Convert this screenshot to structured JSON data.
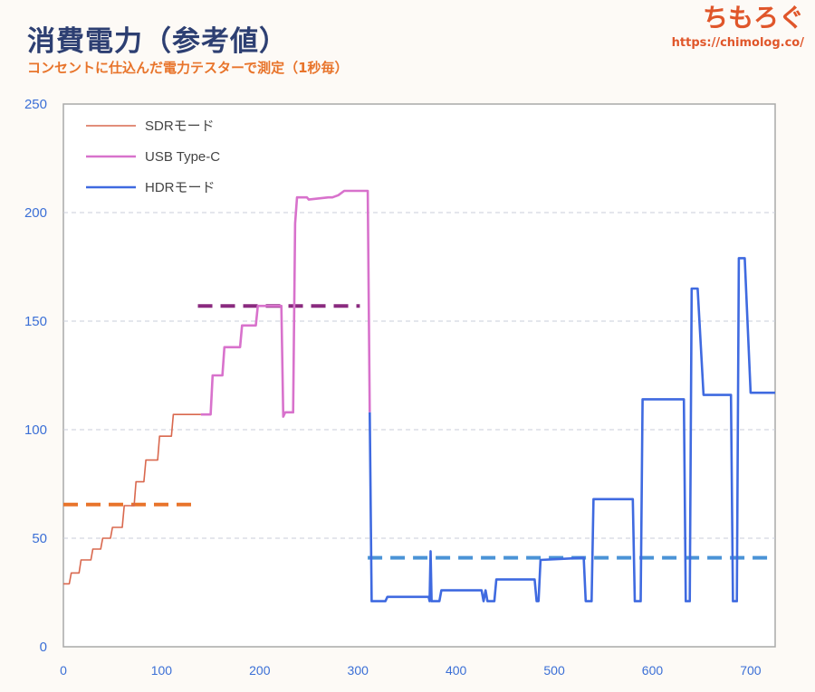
{
  "header": {
    "title": "消費電力（参考値）",
    "subtitle": "コンセントに仕込んだ電力テスターで測定（1秒毎）"
  },
  "brand": {
    "logo": "ちもろぐ",
    "url": "https://chimolog.co/"
  },
  "colors": {
    "sdr": "#d9684e",
    "usb": "#d872cc",
    "hdr": "#3f6ae0",
    "sdr_avg": "#e8742b",
    "usb_avg": "#8a2a7f",
    "hdr_avg": "#4a93d6",
    "tick": "#3b6fd6"
  },
  "chart_data": {
    "type": "line",
    "xlim": [
      0,
      725
    ],
    "ylim": [
      0,
      250
    ],
    "x_ticks": [
      0,
      100,
      200,
      300,
      400,
      500,
      600,
      700
    ],
    "y_ticks": [
      0,
      50,
      100,
      150,
      200,
      250
    ],
    "grid": "horizontal-dashed",
    "legend_position": "top-left",
    "series": [
      {
        "name": "SDRモード",
        "color_key": "sdr",
        "points": [
          [
            0,
            29
          ],
          [
            6,
            29
          ],
          [
            8,
            34
          ],
          [
            16,
            34
          ],
          [
            18,
            40
          ],
          [
            28,
            40
          ],
          [
            30,
            45
          ],
          [
            38,
            45
          ],
          [
            40,
            50
          ],
          [
            48,
            50
          ],
          [
            50,
            55
          ],
          [
            60,
            55
          ],
          [
            62,
            65
          ],
          [
            72,
            65
          ],
          [
            74,
            76
          ],
          [
            82,
            76
          ],
          [
            84,
            86
          ],
          [
            96,
            86
          ],
          [
            98,
            97
          ],
          [
            110,
            97
          ],
          [
            112,
            107
          ],
          [
            140,
            107
          ]
        ]
      },
      {
        "name": "USB Type-C",
        "color_key": "usb",
        "points": [
          [
            140,
            107
          ],
          [
            150,
            107
          ],
          [
            152,
            125
          ],
          [
            162,
            125
          ],
          [
            164,
            138
          ],
          [
            180,
            138
          ],
          [
            182,
            148
          ],
          [
            196,
            148
          ],
          [
            198,
            157
          ],
          [
            222,
            157
          ],
          [
            224,
            106
          ],
          [
            226,
            108
          ],
          [
            234,
            108
          ],
          [
            236,
            195
          ],
          [
            238,
            207
          ],
          [
            248,
            207
          ],
          [
            250,
            206
          ],
          [
            270,
            207
          ],
          [
            274,
            207
          ],
          [
            280,
            208
          ],
          [
            286,
            210
          ],
          [
            310,
            210
          ],
          [
            312,
            108
          ]
        ]
      },
      {
        "name": "HDRモード",
        "color_key": "hdr",
        "points": [
          [
            312,
            108
          ],
          [
            314,
            21
          ],
          [
            328,
            21
          ],
          [
            330,
            23
          ],
          [
            372,
            23
          ],
          [
            373,
            21
          ],
          [
            374,
            44
          ],
          [
            375,
            21
          ],
          [
            383,
            21
          ],
          [
            385,
            26
          ],
          [
            426,
            26
          ],
          [
            428,
            21
          ],
          [
            430,
            26
          ],
          [
            432,
            21
          ],
          [
            439,
            21
          ],
          [
            441,
            31
          ],
          [
            480,
            31
          ],
          [
            482,
            21
          ],
          [
            484,
            21
          ],
          [
            486,
            40
          ],
          [
            530,
            41
          ],
          [
            532,
            21
          ],
          [
            538,
            21
          ],
          [
            540,
            68
          ],
          [
            580,
            68
          ],
          [
            582,
            21
          ],
          [
            588,
            21
          ],
          [
            590,
            114
          ],
          [
            632,
            114
          ],
          [
            634,
            21
          ],
          [
            638,
            21
          ],
          [
            640,
            165
          ],
          [
            646,
            165
          ],
          [
            652,
            116
          ],
          [
            680,
            116
          ],
          [
            682,
            21
          ],
          [
            686,
            21
          ],
          [
            688,
            179
          ],
          [
            694,
            179
          ],
          [
            700,
            117
          ],
          [
            725,
            117
          ]
        ]
      }
    ],
    "averages": [
      {
        "x_range": [
          0,
          134
        ],
        "y": 65.5,
        "color_key": "sdr_avg"
      },
      {
        "x_range": [
          137,
          302
        ],
        "y": 157,
        "color_key": "usb_avg"
      },
      {
        "x_range": [
          310,
          725
        ],
        "y": 41,
        "color_key": "hdr_avg"
      }
    ]
  }
}
